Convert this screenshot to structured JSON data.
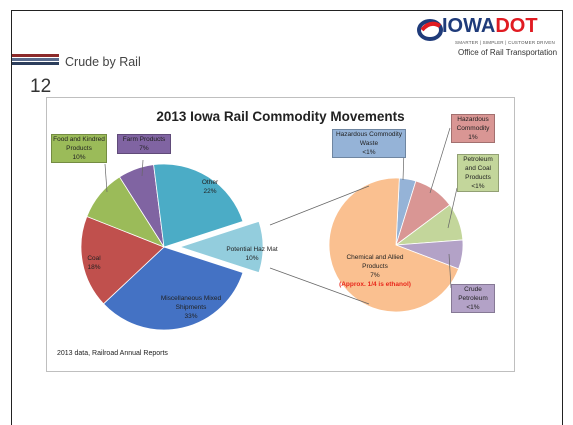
{
  "slide": {
    "section_label": "Crude by Rail",
    "slide_number": "12",
    "logo_text": "IOWADOT",
    "logo_tagline": "SMARTER | SIMPLER | CUSTOMER DRIVEN",
    "office": "Office of Rail Transportation"
  },
  "colors": {
    "stripe1": "#8c2a2a",
    "stripe2": "#5a6b8c",
    "stripe3": "#2c3e5c",
    "logo_red": "#e11b22",
    "logo_blue": "#1f3b7a"
  },
  "chart_data": {
    "type": "pie",
    "title": "2013 Iowa Rail Commodity Movements",
    "source_note": "2013 data, Railroad Annual Reports",
    "main_pie": {
      "slices": [
        {
          "name": "Miscellaneous Mixed Shipments",
          "value": 33,
          "label": "33%",
          "color": "#4472c4"
        },
        {
          "name": "Coal",
          "value": 18,
          "label": "18%",
          "color": "#c0504d"
        },
        {
          "name": "Food and Kindred Products",
          "value": 10,
          "label": "10%",
          "color": "#9bbb59"
        },
        {
          "name": "Farm Products",
          "value": 7,
          "label": "7%",
          "color": "#8064a2"
        },
        {
          "name": "Other",
          "value": 22,
          "label": "22%",
          "color": "#4bacc6"
        },
        {
          "name": "Potential Haz Mat",
          "value": 10,
          "label": "10%",
          "color": "#93cddd"
        }
      ]
    },
    "sub_pie": {
      "slices": [
        {
          "name": "Chemical and Allied Products",
          "value": 7,
          "label": "7%",
          "note": "(Approx. 1/4 is ethanol)",
          "color": "#fac090"
        },
        {
          "name": "Hazardous Commodity Waste",
          "value": 0.4,
          "label": "<1%",
          "color": "#95b3d7"
        },
        {
          "name": "Hazardous Commodity",
          "value": 1,
          "label": "1%",
          "color": "#d99694"
        },
        {
          "name": "Petroleum and Coal Products",
          "value": 0.9,
          "label": "<1%",
          "color": "#c3d69b"
        },
        {
          "name": "Crude Petroleum",
          "value": 0.7,
          "label": "<1%",
          "color": "#b3a2c7"
        }
      ]
    }
  }
}
